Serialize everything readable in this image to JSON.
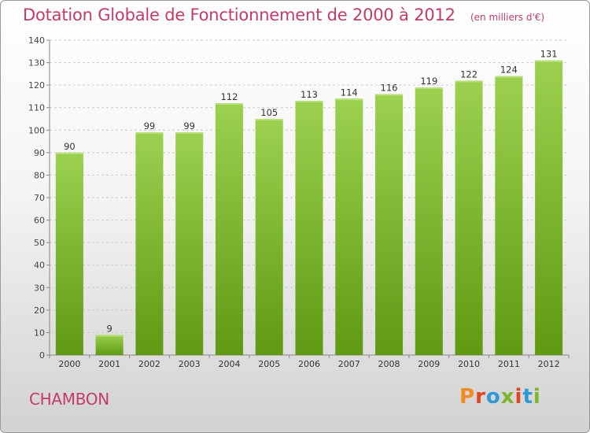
{
  "header": {
    "title": "Dotation Globale de Fonctionnement de 2000 à 2012",
    "unit": "(en milliers d'€)"
  },
  "footer": {
    "commune": "CHAMBON",
    "logo": "Proxiti"
  },
  "colors": {
    "title": "#c23b6b",
    "bar_top": "#9bd14f",
    "bar_bottom": "#5f9a12",
    "logo": [
      "#f28c1e",
      "#e2451b",
      "#2d9ad6",
      "#7cb62b",
      "#e2451b",
      "#2d9ad6",
      "#7cb62b"
    ]
  },
  "chart_data": {
    "type": "bar",
    "categories": [
      "2000",
      "2001",
      "2002",
      "2003",
      "2004",
      "2005",
      "2006",
      "2007",
      "2008",
      "2009",
      "2010",
      "2011",
      "2012"
    ],
    "values": [
      90,
      9,
      99,
      99,
      112,
      105,
      113,
      114,
      116,
      119,
      122,
      124,
      131
    ],
    "ylim": [
      0,
      140
    ],
    "ytick_step": 10,
    "grid": true,
    "data_labels": true
  }
}
